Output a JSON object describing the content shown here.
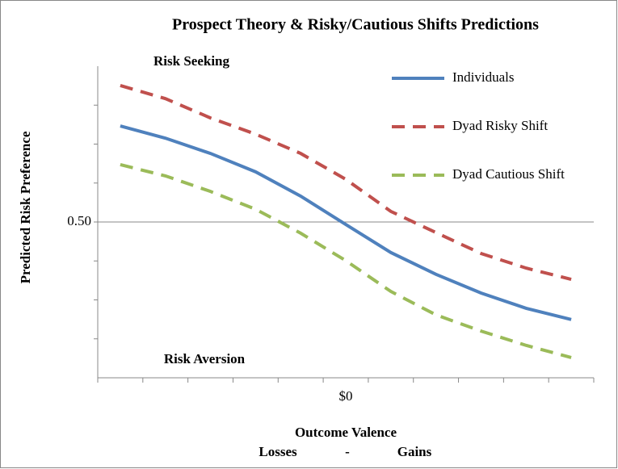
{
  "chart_data": {
    "type": "line",
    "title": "Prospect Theory & Risky/Cautious Shifts Predictions",
    "y_label": "Predicted Risk Preference",
    "x_label": "Outcome Valence",
    "x_sublabels": [
      "Losses",
      "-",
      "Gains"
    ],
    "annotations": [
      "Risk Seeking",
      "Risk Aversion"
    ],
    "categories": [
      null,
      null,
      null,
      null,
      null,
      "$0",
      null,
      null,
      null,
      null,
      null
    ],
    "ylim": [
      0,
      1
    ],
    "yticks": [
      {
        "value": 0.5,
        "label": "0.50"
      }
    ],
    "yminorticks": [
      0.125,
      0.25,
      0.375,
      0.625,
      0.75,
      0.875
    ],
    "grid": true,
    "legend": "upper right",
    "series": [
      {
        "name": "Individuals",
        "color": "#4f81bd",
        "dash": "solid",
        "values": [
          0.808,
          0.769,
          0.72,
          0.661,
          0.583,
          0.492,
          0.402,
          0.332,
          0.272,
          0.223,
          0.187
        ]
      },
      {
        "name": "Dyad Risky Shift",
        "color": "#c0504d",
        "dash": "dashed",
        "values": [
          0.938,
          0.896,
          0.834,
          0.782,
          0.72,
          0.637,
          0.534,
          0.466,
          0.399,
          0.352,
          0.316
        ]
      },
      {
        "name": "Dyad Cautious Shift",
        "color": "#9bbb59",
        "dash": "dashed",
        "values": [
          0.684,
          0.648,
          0.598,
          0.541,
          0.464,
          0.376,
          0.277,
          0.202,
          0.15,
          0.104,
          0.065
        ]
      }
    ]
  }
}
